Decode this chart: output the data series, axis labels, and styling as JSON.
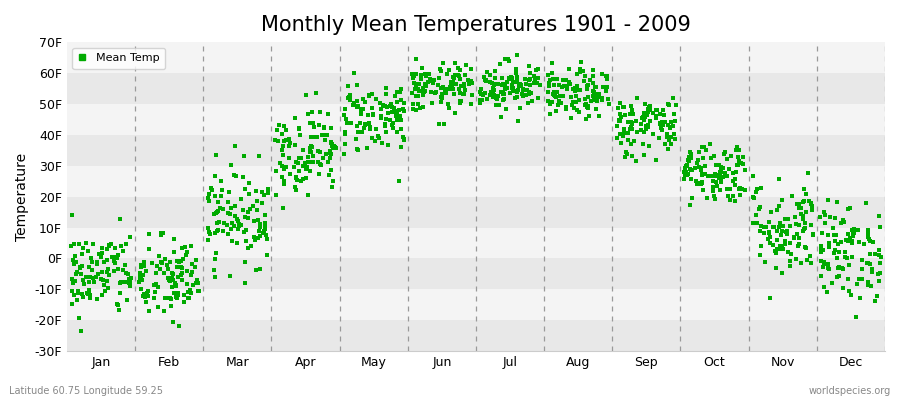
{
  "title": "Monthly Mean Temperatures 1901 - 2009",
  "ylabel": "Temperature",
  "xlabel": "",
  "ylim": [
    -30,
    70
  ],
  "yticks": [
    -30,
    -20,
    -10,
    0,
    10,
    20,
    30,
    40,
    50,
    60,
    70
  ],
  "ytick_labels": [
    "-30F",
    "-20F",
    "-10F",
    "0F",
    "10F",
    "20F",
    "30F",
    "40F",
    "50F",
    "60F",
    "70F"
  ],
  "months": [
    "Jan",
    "Feb",
    "Mar",
    "Apr",
    "May",
    "Jun",
    "Jul",
    "Aug",
    "Sep",
    "Oct",
    "Nov",
    "Dec"
  ],
  "dot_color": "#00aa00",
  "dot_size": 8,
  "background_color": "#ffffff",
  "band_colors": [
    "#e8e8e8",
    "#f4f4f4"
  ],
  "legend_label": "Mean Temp",
  "footer_left": "Latitude 60.75 Longitude 59.25",
  "footer_right": "worldspecies.org",
  "title_fontsize": 15,
  "label_fontsize": 9,
  "monthly_means": [
    -5,
    -7,
    14,
    35,
    46,
    55,
    56,
    53,
    43,
    28,
    10,
    2
  ],
  "monthly_stds": [
    7,
    7,
    8,
    7,
    6,
    4,
    4,
    4,
    5,
    5,
    8,
    8
  ],
  "n_years": 109
}
